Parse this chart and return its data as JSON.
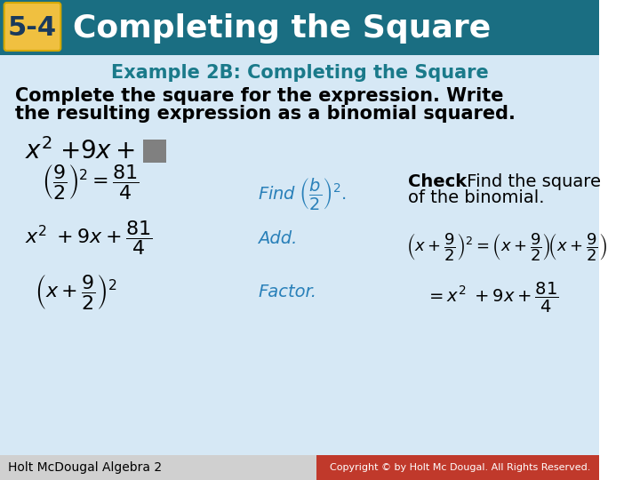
{
  "header_bg_color": "#1a5276",
  "header_teal_bg": "#1a7a8a",
  "badge_color": "#f0c040",
  "badge_text": "5-4",
  "header_title": "Completing the Square",
  "example_title": "Example 2B: Completing the Square",
  "example_title_color": "#1a7a8a",
  "instruction_text_line1": "Complete the square for the expression. Write",
  "instruction_text_line2": "the resulting expression as a binomial squared.",
  "footer_left": "Holt McDougal Algebra 2",
  "footer_right": "Copyright © by Holt Mc Dougal. All Rights Reserved.",
  "footer_bg": "#c0392b",
  "bg_color": "#ffffff",
  "body_bg": "#dde8f0"
}
